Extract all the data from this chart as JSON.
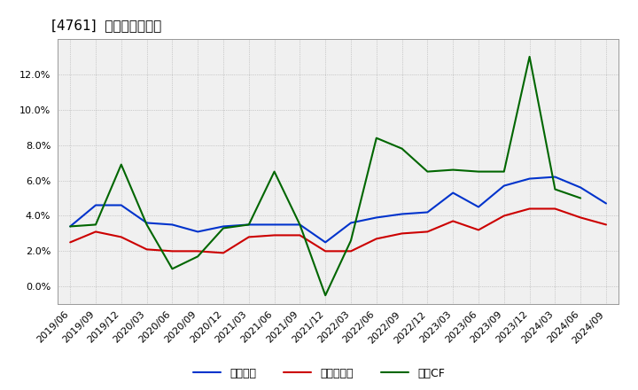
{
  "title": "[4761]  マージンの推移",
  "x_labels": [
    "2019/06",
    "2019/09",
    "2019/12",
    "2020/03",
    "2020/06",
    "2020/09",
    "2020/12",
    "2021/03",
    "2021/06",
    "2021/09",
    "2021/12",
    "2022/03",
    "2022/06",
    "2022/09",
    "2022/12",
    "2023/03",
    "2023/06",
    "2023/09",
    "2023/12",
    "2024/03",
    "2024/06",
    "2024/09"
  ],
  "series": [
    {
      "name": "経常利益",
      "color": "#0033cc",
      "values": [
        3.4,
        4.6,
        4.6,
        3.6,
        3.5,
        3.1,
        3.4,
        3.5,
        3.5,
        3.5,
        2.5,
        3.6,
        3.9,
        4.1,
        4.2,
        5.3,
        4.5,
        5.7,
        6.1,
        6.2,
        5.6,
        4.7
      ]
    },
    {
      "name": "当期純利益",
      "color": "#cc0000",
      "values": [
        2.5,
        3.1,
        2.8,
        2.1,
        2.0,
        2.0,
        1.9,
        2.8,
        2.9,
        2.9,
        2.0,
        2.0,
        2.7,
        3.0,
        3.1,
        3.7,
        3.2,
        4.0,
        4.4,
        4.4,
        3.9,
        3.5
      ]
    },
    {
      "name": "営業CF",
      "color": "#006600",
      "values": [
        3.4,
        3.5,
        6.9,
        3.5,
        1.0,
        1.7,
        3.3,
        3.5,
        6.5,
        3.5,
        -0.5,
        2.6,
        8.4,
        7.8,
        6.5,
        6.6,
        6.5,
        6.5,
        13.0,
        5.5,
        5.0,
        null
      ]
    }
  ],
  "ylim": [
    -1.0,
    14.0
  ],
  "yticks": [
    0.0,
    2.0,
    4.0,
    6.0,
    8.0,
    10.0,
    12.0
  ],
  "background_color": "#ffffff",
  "plot_bg_color": "#f0f0f0",
  "grid_color": "#aaaaaa",
  "title_fontsize": 11,
  "tick_fontsize": 8,
  "legend_fontsize": 9
}
